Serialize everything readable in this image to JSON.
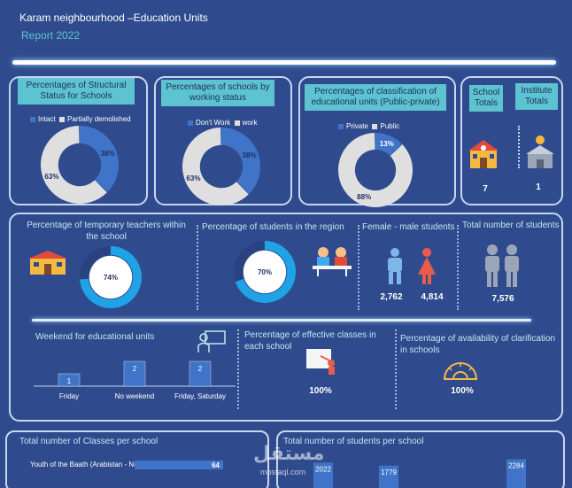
{
  "header": {
    "title": "Karam  neighbourhood –Education Units",
    "subtitle": "Report 2022"
  },
  "colors": {
    "background": "#2f4b8e",
    "accent_blue": "#3f74c8",
    "light_gray": "#dfdfdf",
    "cyan_title": "#5ec3d0",
    "ring_blue": "#1fa3e6"
  },
  "structural": {
    "title": "Percentages of Structural Status for Schools",
    "legend": [
      "Intact",
      "Partially demolished"
    ],
    "labels": [
      "38%",
      "63%"
    ]
  },
  "working": {
    "title": "Percentages of schools by working status",
    "legend": [
      "Don't Work",
      "work"
    ],
    "labels": [
      "38%",
      "63%"
    ]
  },
  "classification": {
    "title": "Percentages of classification of educational units (Public-private)",
    "legend": [
      "Private",
      "Public"
    ],
    "labels": [
      "13%",
      "88%"
    ]
  },
  "totals": {
    "school_label": "School Totals",
    "school_value": "7",
    "institute_label": "Institute Totals",
    "institute_value": "1"
  },
  "teachers": {
    "title": "Percentage of temporary teachers within the school",
    "value": "74%"
  },
  "students_region": {
    "title": "Percentage of students in the region",
    "value": "70%"
  },
  "gender": {
    "title": "Female - male students",
    "male": "2,762",
    "female": "4,814"
  },
  "total_students": {
    "title": "Total number of students",
    "value": "7,576"
  },
  "weekend": {
    "title": "Weekend for educational units",
    "bars": [
      {
        "label": "Friday",
        "value": "1"
      },
      {
        "label": "No weekend",
        "value": "2"
      },
      {
        "label": "Friday, Saturday",
        "value": "2"
      }
    ]
  },
  "effective": {
    "title": "Percentage of effective classes in each school",
    "value": "100%"
  },
  "clarification": {
    "title": "Percentage of availability of clarification in schools",
    "value": "100%"
  },
  "classes_per_school": {
    "title": "Total number of Classes per school",
    "row_label": "Youth of the Baath (Arabistan - New)",
    "row_value": "64"
  },
  "students_per_school": {
    "title": "Total number of students per school",
    "values": [
      "2022",
      "1779",
      "2284"
    ]
  },
  "watermark": {
    "text": "مستقل",
    "url": "mostaql.com"
  },
  "chart_data": [
    {
      "type": "pie",
      "title": "Percentages of Structural Status for Schools",
      "labels": [
        "Intact",
        "Partially demolished"
      ],
      "values": [
        38,
        63
      ]
    },
    {
      "type": "pie",
      "title": "Percentages of schools by working status",
      "labels": [
        "Don't Work",
        "work"
      ],
      "values": [
        38,
        63
      ]
    },
    {
      "type": "pie",
      "title": "Percentages of classification of educational units (Public-private)",
      "labels": [
        "Private",
        "Public"
      ],
      "values": [
        13,
        88
      ]
    },
    {
      "type": "pie",
      "title": "Percentage of temporary teachers within the school",
      "values": [
        74
      ]
    },
    {
      "type": "pie",
      "title": "Percentage of students in the region",
      "values": [
        70
      ]
    },
    {
      "type": "bar",
      "title": "Weekend for educational units",
      "categories": [
        "Friday",
        "No weekend",
        "Friday, Saturday"
      ],
      "values": [
        1,
        2,
        2
      ]
    },
    {
      "type": "bar",
      "title": "Total number of Classes per school",
      "categories": [
        "Youth of the Baath (Arabistan - New)"
      ],
      "values": [
        64
      ]
    },
    {
      "type": "bar",
      "title": "Total number of students per school",
      "values": [
        2022,
        1779,
        2284
      ]
    }
  ]
}
